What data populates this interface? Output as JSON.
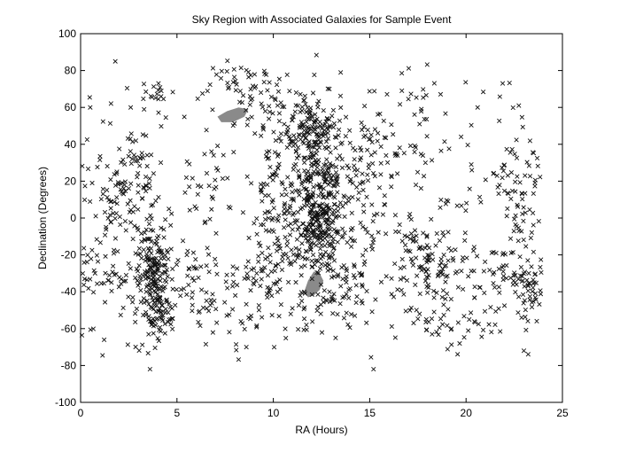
{
  "chart_data": {
    "type": "scatter",
    "title": "Sky Region with Associated Galaxies for Sample Event",
    "xlabel": "RA (Hours)",
    "ylabel": "Declination (Degrees)",
    "xlim": [
      0,
      25
    ],
    "ylim": [
      -100,
      100
    ],
    "xticks": [
      0,
      5,
      10,
      15,
      20,
      25
    ],
    "yticks": [
      -100,
      -80,
      -60,
      -40,
      -20,
      0,
      20,
      40,
      60,
      80,
      100
    ],
    "grid": false,
    "legend": "none",
    "marker": "x",
    "marker_color": "#111111",
    "region_color": "#8a8a8a",
    "regions": [
      {
        "ra": [
          7.1,
          7.6,
          8.2,
          8.7,
          8.5,
          7.9,
          7.3
        ],
        "dec": [
          55,
          58,
          60,
          59,
          55,
          52,
          52
        ]
      },
      {
        "ra": [
          11.6,
          11.8,
          12.1,
          12.4,
          12.6,
          12.4,
          12.1,
          11.8
        ],
        "dec": [
          -40,
          -34,
          -29,
          -30,
          -34,
          -39,
          -42,
          -43
        ]
      }
    ],
    "clusters": [
      {
        "ra": 3.8,
        "dec": -30,
        "sra": 0.5,
        "sdec": 14,
        "n": 200
      },
      {
        "ra": 4.2,
        "dec": -55,
        "sra": 0.4,
        "sdec": 5,
        "n": 40
      },
      {
        "ra": 2.8,
        "dec": 25,
        "sra": 0.5,
        "sdec": 12,
        "n": 45
      },
      {
        "ra": 1.7,
        "dec": 10,
        "sra": 0.6,
        "sdec": 10,
        "n": 40
      },
      {
        "ra": 0.9,
        "dec": -30,
        "sra": 0.8,
        "sdec": 10,
        "n": 55
      },
      {
        "ra": 6.0,
        "dec": -35,
        "sra": 0.7,
        "sdec": 10,
        "n": 40
      },
      {
        "ra": 12.2,
        "dec": 15,
        "sra": 0.7,
        "sdec": 25,
        "n": 280
      },
      {
        "ra": 12.0,
        "dec": 48,
        "sra": 0.6,
        "sdec": 8,
        "n": 100
      },
      {
        "ra": 12.6,
        "dec": -8,
        "sra": 0.5,
        "sdec": 12,
        "n": 90
      },
      {
        "ra": 10.5,
        "dec": 10,
        "sra": 0.9,
        "sdec": 18,
        "n": 120
      },
      {
        "ra": 10.0,
        "dec": 60,
        "sra": 0.8,
        "sdec": 10,
        "n": 40
      },
      {
        "ra": 14.5,
        "dec": 25,
        "sra": 0.8,
        "sdec": 14,
        "n": 60
      },
      {
        "ra": 9.6,
        "dec": -30,
        "sra": 0.9,
        "sdec": 8,
        "n": 55
      },
      {
        "ra": 13.5,
        "dec": -35,
        "sra": 0.8,
        "sdec": 10,
        "n": 55
      },
      {
        "ra": 17.5,
        "dec": -30,
        "sra": 0.8,
        "sdec": 10,
        "n": 50
      },
      {
        "ra": 19.2,
        "dec": -30,
        "sra": 0.8,
        "sdec": 10,
        "n": 40
      },
      {
        "ra": 17.8,
        "dec": -15,
        "sra": 0.9,
        "sdec": 8,
        "n": 30
      },
      {
        "ra": 22.3,
        "dec": -35,
        "sra": 0.9,
        "sdec": 12,
        "n": 55
      },
      {
        "ra": 23.3,
        "dec": -40,
        "sra": 0.4,
        "sdec": 6,
        "n": 35
      },
      {
        "ra": 22.7,
        "dec": 25,
        "sra": 0.7,
        "sdec": 12,
        "n": 40
      },
      {
        "ra": 22.8,
        "dec": 0,
        "sra": 0.7,
        "sdec": 10,
        "n": 25
      },
      {
        "ra": 16.5,
        "dec": 40,
        "sra": 0.9,
        "sdec": 12,
        "n": 30
      },
      {
        "ra": 17.6,
        "dec": 65,
        "sra": 0.5,
        "sdec": 6,
        "n": 12
      },
      {
        "ra": 7.8,
        "dec": 75,
        "sra": 1.0,
        "sdec": 6,
        "n": 30
      },
      {
        "ra": 3.8,
        "dec": 70,
        "sra": 0.4,
        "sdec": 5,
        "n": 15
      },
      {
        "ra": 18.0,
        "dec": -60,
        "sra": 0.5,
        "sdec": 4,
        "n": 12
      },
      {
        "ra": 20.0,
        "dec": -60,
        "sra": 0.8,
        "sdec": 5,
        "n": 15
      },
      {
        "ra": 8.5,
        "dec": -60,
        "sra": 1.0,
        "sdec": 8,
        "n": 20
      },
      {
        "ra": 11.3,
        "dec": -50,
        "sra": 1.2,
        "sdec": 8,
        "n": 25
      },
      {
        "ra": 6.5,
        "dec": 5,
        "sra": 1.2,
        "sdec": 15,
        "n": 20
      },
      {
        "ra": 20.5,
        "dec": 10,
        "sra": 1.0,
        "sdec": 15,
        "n": 15
      },
      {
        "ra": 15.5,
        "dec": -5,
        "sra": 0.8,
        "sdec": 12,
        "n": 25
      }
    ],
    "scatter_uniform": 260,
    "fixed_points": [
      {
        "ra": 1.8,
        "dec": 85
      },
      {
        "ra": 15.2,
        "dec": -82
      },
      {
        "ra": 0.5,
        "dec": 60
      },
      {
        "ra": 21.9,
        "dec": 73
      },
      {
        "ra": 20.6,
        "dec": 60
      },
      {
        "ra": 23.0,
        "dec": -72
      },
      {
        "ra": 2.6,
        "dec": 60
      },
      {
        "ra": 3.6,
        "dec": -82
      }
    ]
  }
}
